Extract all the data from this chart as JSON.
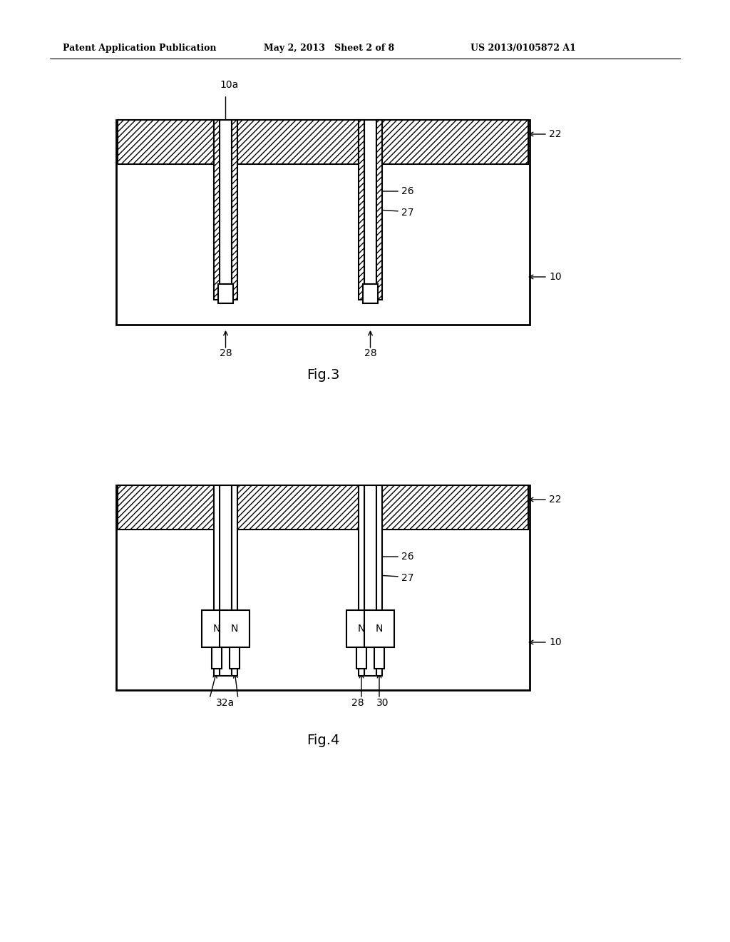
{
  "header_left": "Patent Application Publication",
  "header_mid": "May 2, 2013   Sheet 2 of 8",
  "header_right": "US 2013/0105872 A1",
  "fig3_label": "Fig.3",
  "fig4_label": "Fig.4",
  "background": "#ffffff",
  "hatch_pattern": "////",
  "label_10a": "10a",
  "label_10": "10",
  "label_22": "22",
  "label_26": "26",
  "label_27": "27",
  "label_28": "28",
  "label_32a": "32a",
  "label_30": "30"
}
